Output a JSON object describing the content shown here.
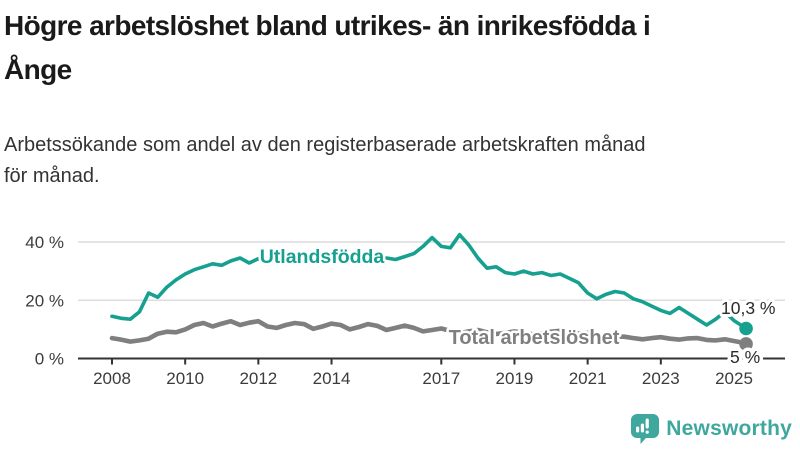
{
  "header": {
    "title_lines": [
      "Högre arbetslöshet bland utrikes- än inrikesfödda i",
      "Ånge"
    ],
    "subtitle_lines": [
      "Arbetssökande som andel av den registerbaserade arbetskraften månad",
      "för månad."
    ]
  },
  "chart_data": {
    "type": "line",
    "unit": "%",
    "grid": "horizontal",
    "xlim": [
      2008,
      2025.5
    ],
    "ylim": [
      0,
      44
    ],
    "x": [
      2008,
      2008.25,
      2008.5,
      2008.75,
      2009,
      2009.25,
      2009.5,
      2009.75,
      2010,
      2010.25,
      2010.5,
      2010.75,
      2011,
      2011.25,
      2011.5,
      2011.75,
      2012,
      2012.25,
      2012.5,
      2012.75,
      2013,
      2013.25,
      2013.5,
      2013.75,
      2014,
      2014.25,
      2014.5,
      2014.75,
      2015,
      2015.25,
      2015.5,
      2015.75,
      2016,
      2016.25,
      2016.5,
      2016.75,
      2017,
      2017.25,
      2017.5,
      2017.75,
      2018,
      2018.25,
      2018.5,
      2018.75,
      2019,
      2019.25,
      2019.5,
      2019.75,
      2020,
      2020.25,
      2020.5,
      2020.75,
      2021,
      2021.25,
      2021.5,
      2021.75,
      2022,
      2022.25,
      2022.5,
      2022.75,
      2023,
      2023.25,
      2023.5,
      2023.75,
      2024,
      2024.25,
      2024.5,
      2024.75,
      2025,
      2025.25,
      2025.33
    ],
    "series": [
      {
        "name": "Utlandsfödda",
        "color": "#16a090",
        "line_width": 3.6,
        "end_label": "10,3 %",
        "end_value": 10.3,
        "values": [
          14.5,
          13.8,
          13.5,
          16.0,
          22.5,
          21.0,
          24.5,
          27.0,
          29.0,
          30.5,
          31.5,
          32.5,
          32.0,
          33.5,
          34.5,
          32.8,
          34.3,
          32.5,
          34.0,
          34.5,
          32.8,
          33.5,
          34.5,
          33.2,
          34.0,
          33.0,
          33.8,
          33.0,
          33.5,
          34.0,
          34.5,
          34.0,
          35.0,
          36.0,
          38.5,
          41.5,
          38.5,
          38.0,
          42.5,
          39.0,
          34.5,
          31.0,
          31.5,
          29.5,
          29.0,
          30.0,
          29.0,
          29.5,
          28.5,
          29.0,
          27.5,
          26.0,
          22.5,
          20.5,
          22.0,
          23.0,
          22.5,
          20.5,
          19.5,
          18.0,
          16.5,
          15.5,
          17.5,
          15.5,
          13.5,
          11.5,
          13.5,
          16.0,
          13.0,
          11.0,
          10.3
        ]
      },
      {
        "name": "Total arbetslöshet",
        "color": "#7f7f7f",
        "line_width": 4.6,
        "end_label": "5 %",
        "end_value": 5,
        "values": [
          7.0,
          6.5,
          5.8,
          6.2,
          6.8,
          8.5,
          9.2,
          9.0,
          10.0,
          11.5,
          12.2,
          11.0,
          12.0,
          12.8,
          11.5,
          12.3,
          12.8,
          11.0,
          10.5,
          11.5,
          12.2,
          11.8,
          10.2,
          11.0,
          12.0,
          11.5,
          10.0,
          10.8,
          11.8,
          11.2,
          9.8,
          10.5,
          11.3,
          10.5,
          9.3,
          9.8,
          10.3,
          9.5,
          8.7,
          9.3,
          9.8,
          9.0,
          8.4,
          8.8,
          9.3,
          8.8,
          8.3,
          8.7,
          9.2,
          9.5,
          9.0,
          8.6,
          8.8,
          8.3,
          7.8,
          7.6,
          7.5,
          7.0,
          6.6,
          7.0,
          7.3,
          6.8,
          6.5,
          6.9,
          7.0,
          6.4,
          6.2,
          6.6,
          6.0,
          5.4,
          5.0
        ]
      }
    ],
    "x_ticks": [
      {
        "year": 2008,
        "label": "2008"
      },
      {
        "year": 2010,
        "label": "2010"
      },
      {
        "year": 2012,
        "label": "2012"
      },
      {
        "year": 2014,
        "label": "2014"
      },
      {
        "year": 2017,
        "label": "2017"
      },
      {
        "year": 2019,
        "label": "2019"
      },
      {
        "year": 2021,
        "label": "2021"
      },
      {
        "year": 2023,
        "label": "2023"
      },
      {
        "year": 2025,
        "label": "2025"
      }
    ],
    "y_ticks": [
      {
        "value": 0,
        "label": "0 %"
      },
      {
        "value": 20,
        "label": "20 %"
      },
      {
        "value": 40,
        "label": "40 %"
      }
    ]
  },
  "brand": {
    "name": "Newsworthy",
    "color": "#3ea79e",
    "icon": "bar-chart-speech-bubble-icon"
  },
  "colors": {
    "accent": "#16a090",
    "secondary": "#7f7f7f",
    "title_text": "#1a1a1a",
    "subtitle_text": "#333333",
    "axis_text": "#3c3c3c",
    "value_label_text": "#2b2b2b",
    "grid_line": "#dcdcdc",
    "axis_line": "#333333",
    "background": "#ffffff"
  }
}
